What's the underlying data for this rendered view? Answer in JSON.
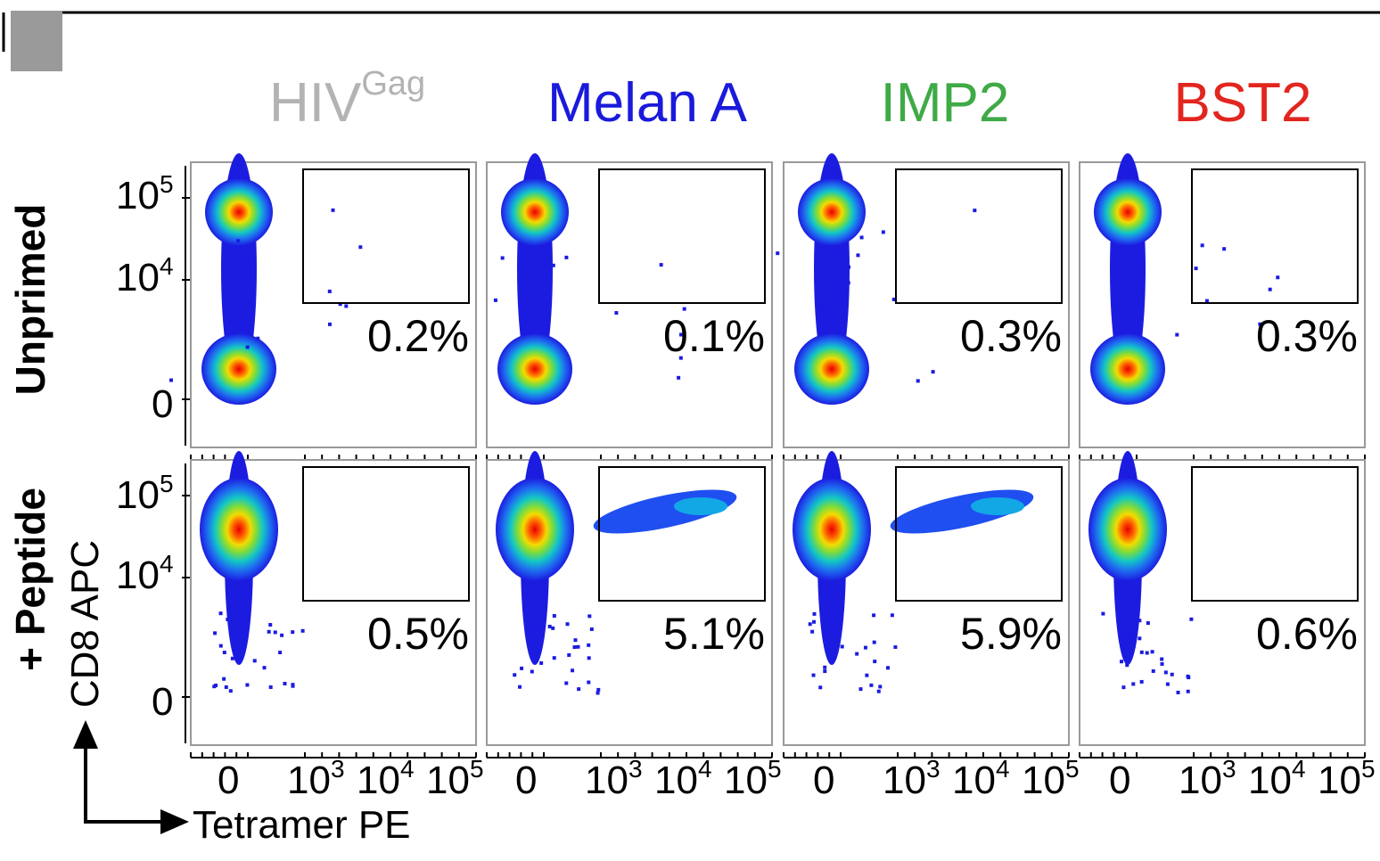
{
  "colors": {
    "HIVGag": "#b3b3b3",
    "MelanA": "#1a1adc",
    "IMP2": "#3faa46",
    "BST2": "#e2261f",
    "dots": "#1c1ce0"
  },
  "chart_data": {
    "type": "scatter",
    "plot_kind": "flow cytometry density dot plots",
    "xlabel": "Tetramer PE",
    "ylabel": "CD8 APC",
    "x_tick_labels": [
      "0",
      "10³",
      "10⁴",
      "10⁵"
    ],
    "y_tick_labels": [
      "0",
      "10⁴",
      "10⁵"
    ],
    "columns": [
      {
        "key": "HIVGag",
        "title_main": "HIV",
        "title_sup": "Gag"
      },
      {
        "key": "MelanA",
        "title_main": "Melan A",
        "title_sup": ""
      },
      {
        "key": "IMP2",
        "title_main": "IMP2",
        "title_sup": ""
      },
      {
        "key": "BST2",
        "title_main": "BST2",
        "title_sup": ""
      }
    ],
    "rows": [
      {
        "label": "Unprimed",
        "gate_percentages": [
          "0.2%",
          "0.1%",
          "0.3%",
          "0.3%"
        ]
      },
      {
        "label": "+ Peptide",
        "gate_percentages": [
          "0.5%",
          "5.1%",
          "5.9%",
          "0.6%"
        ]
      }
    ],
    "gate": "tetramer-positive CD8-high rectangle, upper right"
  }
}
